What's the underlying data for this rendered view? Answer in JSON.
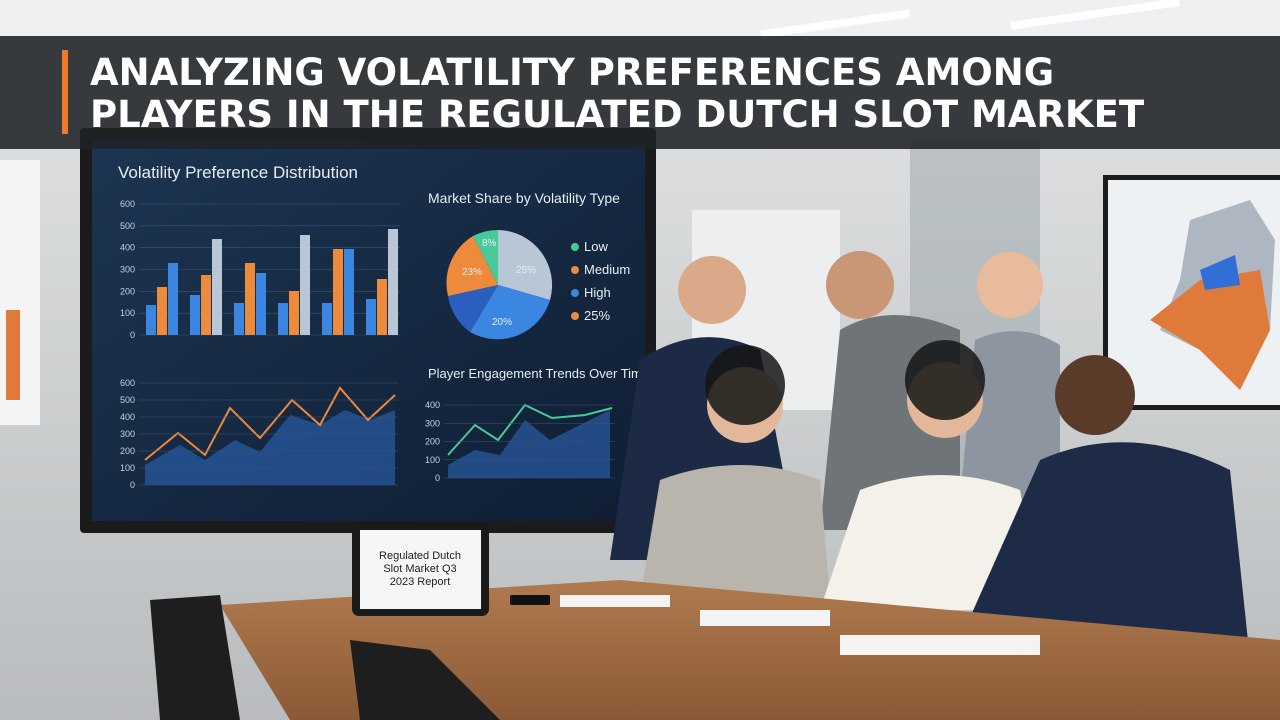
{
  "banner": {
    "title_lines": [
      "ANALYZING VOLATILITY PREFERENCES AMONG",
      "PLAYERS IN THE REGULATED DUTCH SLOT MARKET"
    ]
  },
  "screen": {
    "bar_panel": {
      "title": "Volatility Preference Distribution",
      "yticks": [
        "600",
        "500",
        "400",
        "300",
        "200",
        "100",
        "0"
      ]
    },
    "pie_panel": {
      "title": "Market Share by Volatility Type",
      "slice_labels": [
        "8%",
        "25%",
        "20%",
        "23%"
      ],
      "legend": [
        "Low",
        "Medium",
        "High",
        "25%"
      ]
    },
    "line_panel_left": {
      "yticks": [
        "600",
        "500",
        "400",
        "300",
        "200",
        "100",
        "0"
      ]
    },
    "line_panel_right": {
      "title": "Player Engagement Trends Over Time",
      "yticks": [
        "400",
        "300",
        "200",
        "100",
        "0"
      ]
    }
  },
  "tablet": {
    "lines": [
      "Regulated Dutch",
      "Slot Market Q3",
      "2023 Report"
    ]
  }
}
